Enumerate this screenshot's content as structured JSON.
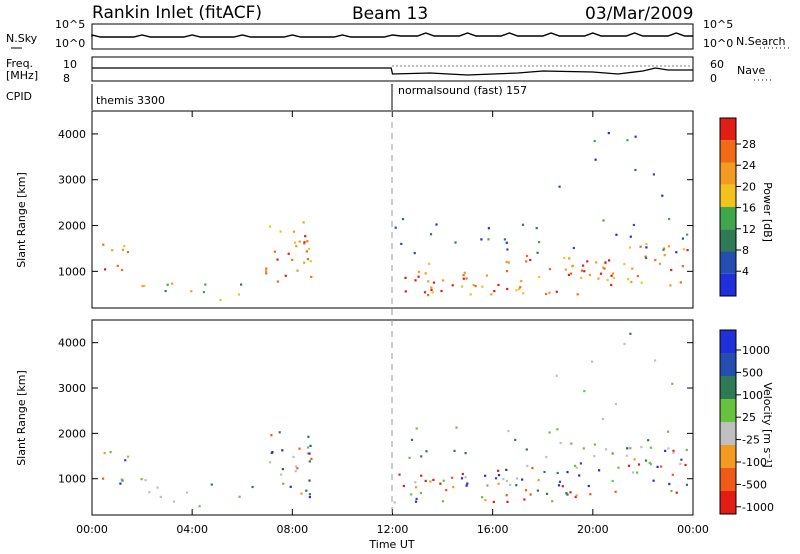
{
  "header": {
    "station": "Rankin Inlet (fitACF)",
    "beam": "Beam 13",
    "date": "03/Mar/2009"
  },
  "labels": {
    "nsky": "N.Sky",
    "nsearch": "N.Search",
    "freq": "Freq.",
    "mhz": "[MHz]",
    "nave": "Nave",
    "cpid": "CPID",
    "cpid_1": "themis 3300",
    "cpid_2": "normalsound (fast) 157"
  },
  "colors": {
    "power": [
      "#1f2fd9",
      "#244fb0",
      "#2f7a55",
      "#3ea64b",
      "#f2c31c",
      "#f39a22",
      "#f26a18",
      "#e21d14"
    ],
    "velocity": [
      "#e21d14",
      "#ef5a18",
      "#f39a22",
      "#bfbfbf",
      "#67c23e",
      "#2f7a55",
      "#244fb0",
      "#1f2fd9"
    ]
  },
  "chart_data": [
    {
      "type": "line",
      "name": "top-panel",
      "left_ticks": [
        "10^5",
        "10^0"
      ],
      "right_ticks": [
        "10^5",
        "10^0"
      ]
    },
    {
      "type": "line",
      "name": "freq-panel",
      "left_ticks": [
        "10",
        "8"
      ],
      "right_ticks": [
        "60",
        "0"
      ]
    },
    {
      "type": "heatmap",
      "name": "power",
      "ylabel": "Slant Range [km]",
      "yticks": [
        1000,
        2000,
        3000,
        4000
      ],
      "ylim": [
        200,
        4500
      ],
      "colorbar_label": "Power [dB]",
      "colorbar_ticks": [
        "28",
        "24",
        "20",
        "16",
        "12",
        "8",
        "4"
      ]
    },
    {
      "type": "heatmap",
      "name": "velocity",
      "xlabel": "Time UT",
      "ylabel": "Slant Range [km]",
      "xticks": [
        "00:00",
        "04:00",
        "08:00",
        "12:00",
        "16:00",
        "20:00",
        "00:00"
      ],
      "yticks": [
        1000,
        2000,
        3000,
        4000
      ],
      "ylim": [
        200,
        4500
      ],
      "colorbar_label": "Velocity [m s⁻¹]",
      "colorbar_ticks": [
        "1000",
        "500",
        "100",
        "25",
        "-25",
        "-100",
        "-500",
        "-1000"
      ]
    }
  ]
}
